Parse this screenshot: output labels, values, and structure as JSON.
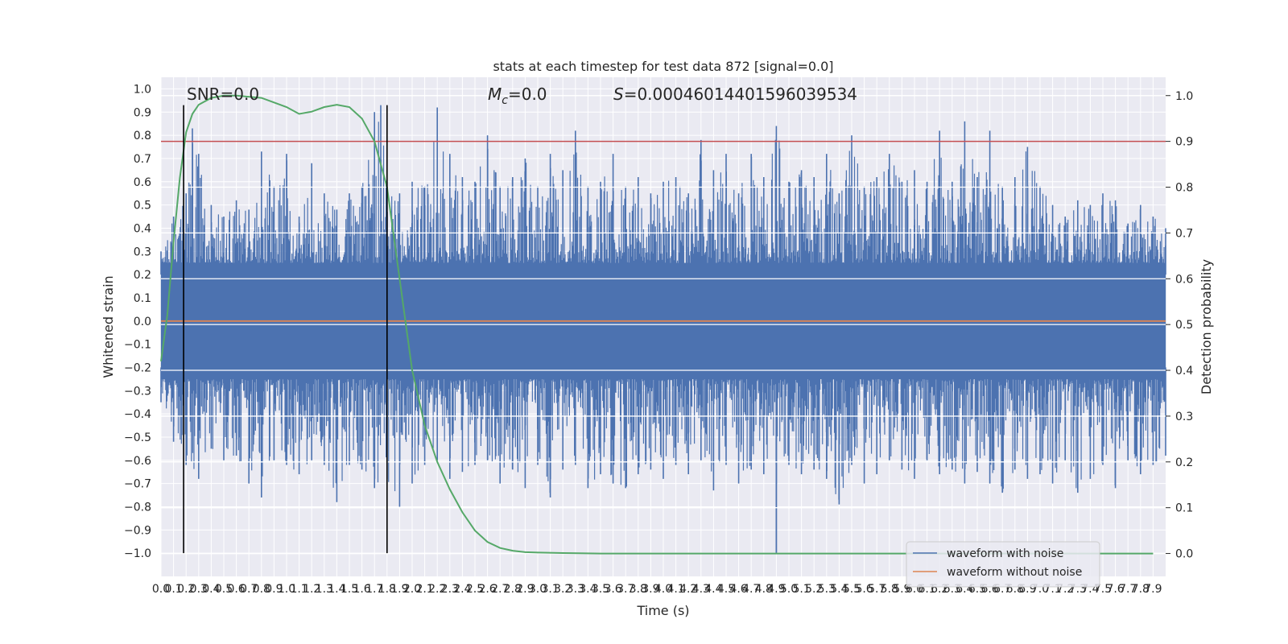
{
  "chart_data": {
    "type": "line",
    "title": "stats at each timestep for test data 872 [signal=0.0]",
    "xlabel": "Time (s)",
    "ylabel_left": "Whitened strain",
    "ylabel_right": "Detection probability",
    "xlim": [
      0.0,
      8.0
    ],
    "ylim_left": [
      -1.1,
      1.05
    ],
    "ylim_right": [
      -0.05,
      1.04
    ],
    "grid": true,
    "background": "#eaeaf2",
    "annotations": {
      "snr": "SNR=0.0",
      "mc_symbol": "M",
      "mc_subscript": "c",
      "mc_value": "=0.0",
      "s_symbol": "S",
      "s_value": "=0.00046014401596039534"
    },
    "threshold": {
      "value": 0.9,
      "axis": "right",
      "color": "#c44e52"
    },
    "markers": {
      "x": [
        0.18,
        1.8
      ],
      "ymin": -1.0,
      "ymax": 0.93,
      "color": "#000000"
    },
    "noisy_waveform": {
      "name": "waveform with noise",
      "color": "#4c72b0",
      "upper_envelope_x": [
        0.0,
        0.1,
        0.2,
        0.25,
        0.3,
        0.4,
        0.5,
        0.6,
        0.7,
        0.8,
        0.9,
        1.0,
        1.1,
        1.2,
        1.3,
        1.4,
        1.5,
        1.6,
        1.7,
        1.75,
        1.8,
        1.9,
        2.0,
        2.1,
        2.2,
        2.3,
        2.4,
        2.5,
        2.6,
        2.7,
        2.8,
        2.9,
        3.0,
        3.1,
        3.2,
        3.3,
        3.4,
        3.5,
        3.6,
        3.7,
        3.8,
        3.9,
        4.0,
        4.1,
        4.2,
        4.3,
        4.4,
        4.5,
        4.6,
        4.7,
        4.8,
        4.9,
        5.0,
        5.1,
        5.2,
        5.3,
        5.4,
        5.5,
        5.6,
        5.7,
        5.8,
        5.9,
        6.0,
        6.1,
        6.2,
        6.3,
        6.4,
        6.5,
        6.6,
        6.7,
        6.8,
        6.9,
        7.0,
        7.1,
        7.2,
        7.3,
        7.4,
        7.5,
        7.6,
        7.7,
        7.8,
        7.9,
        8.0
      ],
      "upper_envelope_y": [
        0.3,
        0.45,
        0.55,
        0.83,
        0.72,
        0.5,
        0.45,
        0.52,
        0.48,
        0.73,
        0.58,
        0.72,
        0.45,
        0.68,
        0.55,
        0.48,
        0.55,
        0.58,
        0.9,
        0.93,
        0.6,
        0.55,
        0.6,
        0.58,
        0.92,
        0.72,
        0.62,
        0.6,
        0.8,
        0.58,
        0.62,
        0.7,
        0.58,
        0.72,
        0.65,
        0.82,
        0.58,
        0.6,
        0.72,
        0.58,
        0.62,
        0.55,
        0.6,
        0.62,
        0.55,
        0.78,
        0.65,
        0.72,
        0.55,
        0.72,
        0.62,
        0.84,
        0.6,
        0.65,
        0.62,
        0.72,
        0.55,
        0.8,
        0.58,
        0.62,
        0.72,
        0.6,
        0.65,
        0.6,
        0.82,
        0.6,
        0.86,
        0.62,
        0.82,
        0.58,
        0.62,
        0.75,
        0.58,
        0.5,
        0.45,
        0.52,
        0.5,
        0.55,
        0.52,
        0.42,
        0.5,
        0.45,
        0.4
      ],
      "lower_envelope_x": [
        0.0,
        0.1,
        0.2,
        0.3,
        0.4,
        0.5,
        0.6,
        0.7,
        0.8,
        0.9,
        1.0,
        1.1,
        1.2,
        1.3,
        1.4,
        1.5,
        1.6,
        1.7,
        1.8,
        1.9,
        2.0,
        2.1,
        2.2,
        2.3,
        2.4,
        2.5,
        2.6,
        2.7,
        2.8,
        2.9,
        3.0,
        3.1,
        3.2,
        3.3,
        3.4,
        3.5,
        3.6,
        3.7,
        3.8,
        3.9,
        4.0,
        4.1,
        4.2,
        4.3,
        4.4,
        4.5,
        4.6,
        4.7,
        4.8,
        4.9,
        5.0,
        5.1,
        5.2,
        5.3,
        5.4,
        5.5,
        5.6,
        5.7,
        5.8,
        5.9,
        6.0,
        6.1,
        6.2,
        6.3,
        6.4,
        6.5,
        6.6,
        6.7,
        6.8,
        6.9,
        7.0,
        7.1,
        7.2,
        7.3,
        7.4,
        7.5,
        7.6,
        7.7,
        7.8,
        7.9,
        8.0
      ],
      "lower_envelope_y": [
        -0.35,
        -0.52,
        -0.62,
        -0.68,
        -0.55,
        -0.6,
        -0.58,
        -0.7,
        -0.76,
        -0.6,
        -0.62,
        -0.66,
        -0.6,
        -0.62,
        -0.78,
        -0.62,
        -0.64,
        -0.72,
        -0.68,
        -0.8,
        -0.7,
        -0.62,
        -0.6,
        -0.68,
        -0.65,
        -0.62,
        -0.6,
        -0.7,
        -0.64,
        -0.72,
        -0.62,
        -0.76,
        -0.64,
        -0.62,
        -0.72,
        -0.66,
        -0.7,
        -0.72,
        -0.66,
        -0.64,
        -0.68,
        -0.62,
        -0.66,
        -0.6,
        -0.73,
        -0.62,
        -0.7,
        -0.64,
        -0.66,
        -0.7,
        -0.62,
        -0.66,
        -0.64,
        -0.68,
        -0.79,
        -0.62,
        -0.7,
        -0.66,
        -0.6,
        -0.64,
        -0.68,
        -0.6,
        -0.66,
        -0.64,
        -0.7,
        -0.65,
        -0.7,
        -0.74,
        -0.64,
        -0.68,
        -0.66,
        -0.7,
        -0.6,
        -0.74,
        -0.68,
        -0.62,
        -0.72,
        -0.6,
        -0.66,
        -0.62,
        -0.58
      ],
      "spike": {
        "x": 4.9,
        "y": -1.0
      }
    },
    "clean_waveform": {
      "name": "waveform without noise",
      "color": "#dd8452",
      "value": 0.0
    },
    "detection_probability": {
      "color": "#55a868",
      "x": [
        0.0,
        0.05,
        0.1,
        0.15,
        0.2,
        0.25,
        0.3,
        0.4,
        0.5,
        0.6,
        0.8,
        1.0,
        1.1,
        1.2,
        1.3,
        1.4,
        1.5,
        1.6,
        1.7,
        1.8,
        1.9,
        2.0,
        2.1,
        2.2,
        2.3,
        2.4,
        2.5,
        2.6,
        2.7,
        2.8,
        2.9,
        3.0,
        3.2,
        3.5,
        4.0,
        5.0,
        6.0,
        7.0,
        7.9
      ],
      "y": [
        0.42,
        0.52,
        0.68,
        0.82,
        0.92,
        0.96,
        0.98,
        0.995,
        1.0,
        1.0,
        0.995,
        0.975,
        0.96,
        0.965,
        0.975,
        0.98,
        0.975,
        0.95,
        0.9,
        0.8,
        0.6,
        0.4,
        0.28,
        0.2,
        0.14,
        0.09,
        0.05,
        0.025,
        0.012,
        0.006,
        0.003,
        0.002,
        0.001,
        0.0,
        0.0,
        0.0,
        0.0,
        0.0,
        0.0
      ]
    },
    "left_ticks": [
      "1.0",
      "0.9",
      "0.8",
      "0.7",
      "0.6",
      "0.5",
      "0.4",
      "0.3",
      "0.2",
      "0.1",
      "0.0",
      "−0.1",
      "−0.2",
      "−0.3",
      "−0.4",
      "−0.5",
      "−0.6",
      "−0.7",
      "−0.8",
      "−0.9",
      "−1.0"
    ],
    "right_ticks": [
      "1.0",
      "0.9",
      "0.8",
      "0.7",
      "0.6",
      "0.5",
      "0.4",
      "0.3",
      "0.2",
      "0.1",
      "0.0"
    ],
    "x_ticks": [
      "0.0",
      "0.1",
      "0.2",
      "0.3",
      "0.4",
      "0.5",
      "0.6",
      "0.7",
      "0.8",
      "0.9",
      "1.0",
      "1.1",
      "1.2",
      "1.3",
      "1.4",
      "1.5",
      "1.6",
      "1.7",
      "1.8",
      "1.9",
      "2.0",
      "2.1",
      "2.2",
      "2.3",
      "2.4",
      "2.5",
      "2.6",
      "2.7",
      "2.8",
      "2.9",
      "3.0",
      "3.1",
      "3.2",
      "3.3",
      "3.4",
      "3.5",
      "3.6",
      "3.7",
      "3.8",
      "3.9",
      "4.0",
      "4.1",
      "4.2",
      "4.3",
      "4.4",
      "4.5",
      "4.6",
      "4.7",
      "4.8",
      "4.9",
      "5.0",
      "5.1",
      "5.2",
      "5.3",
      "5.4",
      "5.5",
      "5.6",
      "5.7",
      "5.8",
      "5.9",
      "6.0",
      "6.1",
      "6.2",
      "6.3",
      "6.4",
      "6.5",
      "6.6",
      "6.7",
      "6.8",
      "6.9",
      "7.0",
      "7.1",
      "7.2",
      "7.3",
      "7.4",
      "7.5",
      "7.6",
      "7.7",
      "7.8",
      "7.9"
    ],
    "legend": {
      "position": "lower-right",
      "entries": [
        {
          "label": "waveform with noise",
          "color": "#4c72b0"
        },
        {
          "label": "waveform without noise",
          "color": "#dd8452"
        }
      ]
    }
  }
}
